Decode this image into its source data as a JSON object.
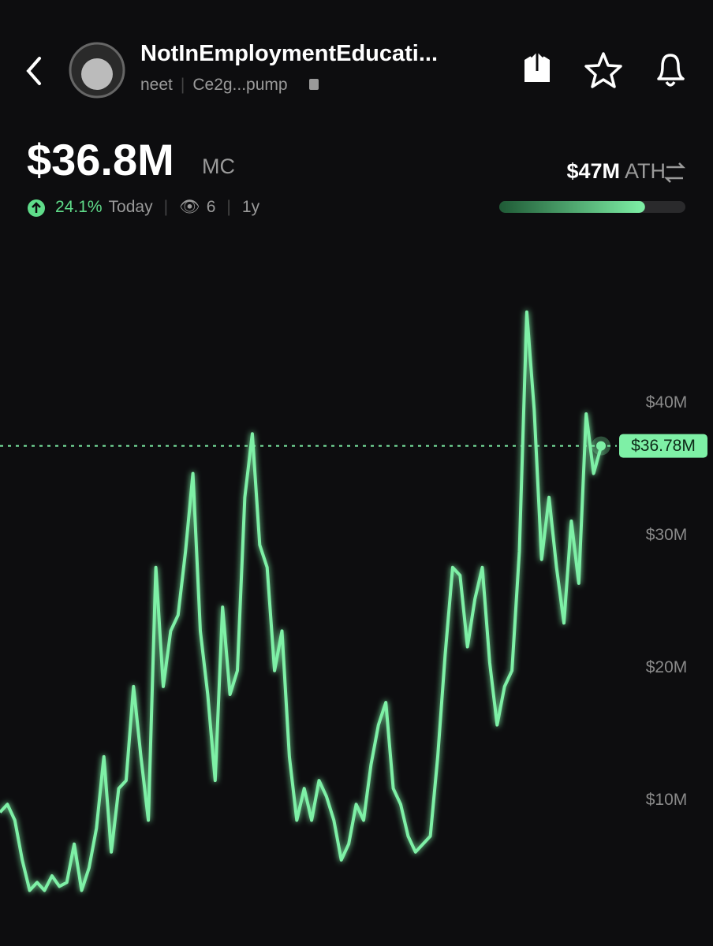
{
  "header": {
    "name": "NotInEmploymentEducati...",
    "ticker": "neet",
    "address": "Ce2g...pump"
  },
  "stats": {
    "market_cap": {
      "value": 36.8,
      "label": "$36.8M"
    },
    "market_cap_unit": "MC",
    "change": "24.1%",
    "change_period": "Today",
    "watchers": "6",
    "age": "1y",
    "ath": {
      "value": 47,
      "label": "$47M"
    },
    "ath_unit": "ATH"
  },
  "chart_data": {
    "type": "line",
    "color": "#7ef0a6",
    "values": [
      9.1,
      9.7,
      8.5,
      5.5,
      3.2,
      3.8,
      3.2,
      4.3,
      3.5,
      3.8,
      6.7,
      3.2,
      4.9,
      7.9,
      13.3,
      6.1,
      10.9,
      11.5,
      18.6,
      13.3,
      8.5,
      27.6,
      18.6,
      22.8,
      24.0,
      28.8,
      34.7,
      22.8,
      18.0,
      11.5,
      24.6,
      18.0,
      19.8,
      32.9,
      37.7,
      29.3,
      27.6,
      19.8,
      22.8,
      13.3,
      8.5,
      10.9,
      8.5,
      11.5,
      10.3,
      8.5,
      5.5,
      6.7,
      9.7,
      8.5,
      12.7,
      15.7,
      17.4,
      10.9,
      9.7,
      7.3,
      6.1,
      6.7,
      7.3,
      13.3,
      21.0,
      27.6,
      27.0,
      21.6,
      25.2,
      27.6,
      20.4,
      15.7,
      18.6,
      19.8,
      28.8,
      46.9,
      39.5,
      28.2,
      32.9,
      27.6,
      23.4,
      31.1,
      26.4,
      39.2,
      34.7,
      36.7
    ],
    "ylim": [
      -1,
      52.6
    ],
    "yticks": [
      {
        "value": 10,
        "label": "$10M"
      },
      {
        "value": 20,
        "label": "$20M"
      },
      {
        "value": 30,
        "label": "$30M"
      },
      {
        "value": 40,
        "label": "$40M"
      }
    ],
    "current": {
      "value": 36.78,
      "label": "$36.78M"
    }
  }
}
